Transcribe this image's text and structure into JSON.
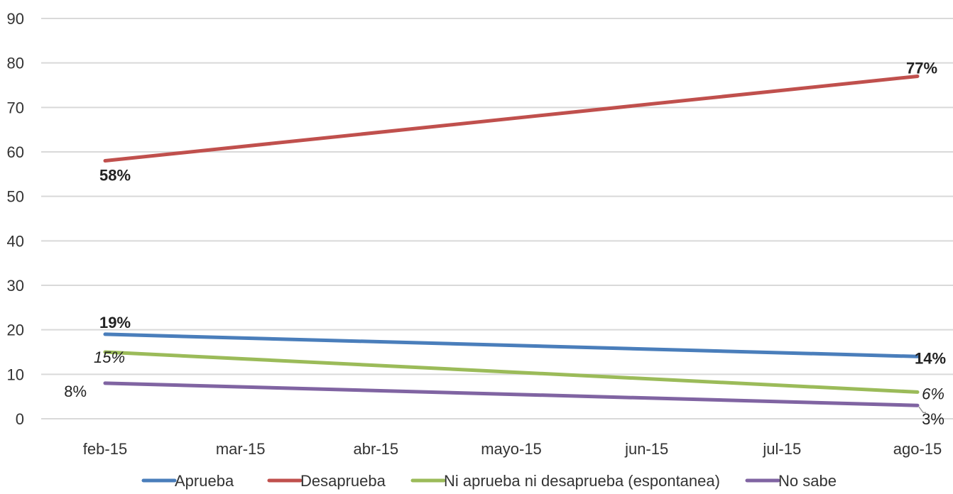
{
  "chart_data": {
    "type": "line",
    "categories": [
      "feb-15",
      "mar-15",
      "abr-15",
      "mayo-15",
      "jun-15",
      "jul-15",
      "ago-15"
    ],
    "ylim": [
      0,
      90
    ],
    "yticks": [
      0,
      10,
      20,
      30,
      40,
      50,
      60,
      70,
      80,
      90
    ],
    "grid": true,
    "legend_position": "bottom",
    "title": "",
    "xlabel": "",
    "ylabel": "",
    "series": [
      {
        "name": "Aprueba",
        "color": "#4a7ebb",
        "points": [
          {
            "x": "feb-15",
            "y": 19
          },
          {
            "x": "ago-15",
            "y": 14
          }
        ],
        "labels": [
          {
            "x": "feb-15",
            "text": "19%"
          },
          {
            "x": "ago-15",
            "text": "14%"
          }
        ]
      },
      {
        "name": "Desaprueba",
        "color": "#c0504d",
        "points": [
          {
            "x": "feb-15",
            "y": 58
          },
          {
            "x": "ago-15",
            "y": 77
          }
        ],
        "labels": [
          {
            "x": "feb-15",
            "text": "58%"
          },
          {
            "x": "ago-15",
            "text": "77%"
          }
        ]
      },
      {
        "name": "Ni aprueba ni desaprueba (espontanea)",
        "color": "#9bbb59",
        "points": [
          {
            "x": "feb-15",
            "y": 15
          },
          {
            "x": "ago-15",
            "y": 6
          }
        ],
        "labels": [
          {
            "x": "feb-15",
            "text": "15%"
          },
          {
            "x": "ago-15",
            "text": "6%"
          }
        ]
      },
      {
        "name": "No sabe",
        "color": "#8064a2",
        "points": [
          {
            "x": "feb-15",
            "y": 8
          },
          {
            "x": "ago-15",
            "y": 3
          }
        ],
        "labels": [
          {
            "x": "feb-15",
            "text": "8%"
          },
          {
            "x": "ago-15",
            "text": "3%"
          }
        ]
      }
    ]
  }
}
